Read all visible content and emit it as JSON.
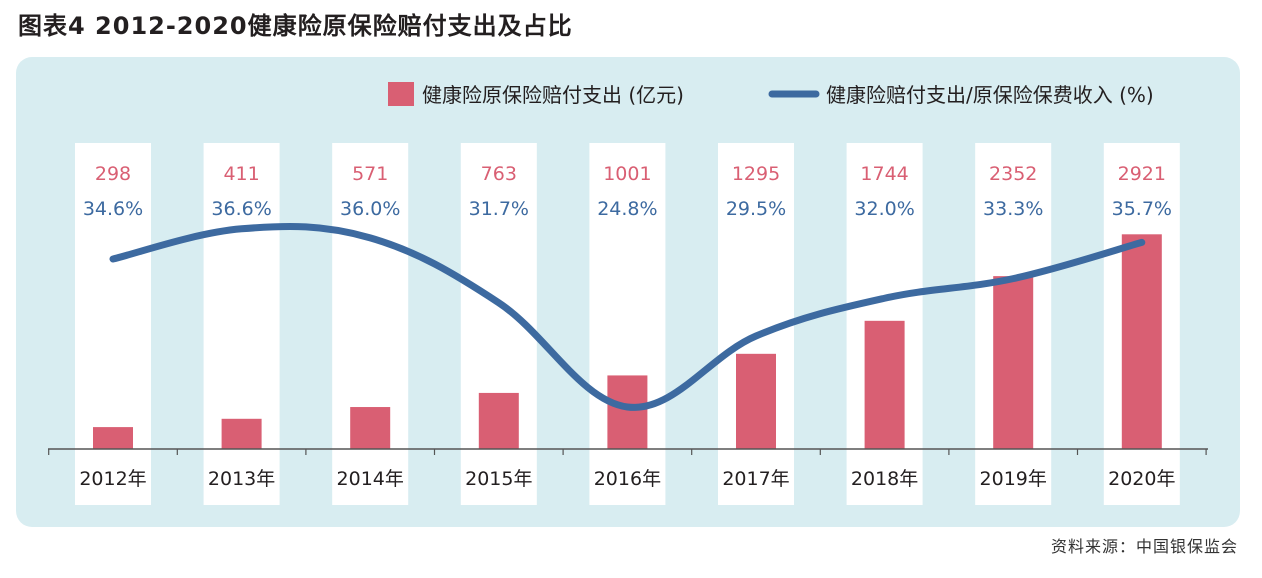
{
  "figure": {
    "title": "图表4  2012-2020健康险原保险赔付支出及占比",
    "source": "资料来源：中国银保监会"
  },
  "colors": {
    "panel_bg": "#d8edf1",
    "column_bg": "#ffffff",
    "bar": "#d95f73",
    "line": "#3d6aa0",
    "bar_label": "#d95f73",
    "line_label": "#3d6aa0",
    "axis": "#555555"
  },
  "chart_data": {
    "type": "bar",
    "categories": [
      "2012年",
      "2013年",
      "2014年",
      "2015年",
      "2016年",
      "2017年",
      "2018年",
      "2019年",
      "2020年"
    ],
    "series": [
      {
        "name": "健康险原保险赔付支出 (亿元)",
        "type": "bar",
        "values": [
          298,
          411,
          571,
          763,
          1001,
          1295,
          1744,
          2352,
          2921
        ],
        "labels": [
          "298",
          "411",
          "571",
          "763",
          "1001",
          "1295",
          "1744",
          "2352",
          "2921"
        ]
      },
      {
        "name": "健康险赔付支出/原保险保费收入 (%)",
        "type": "line",
        "values": [
          34.6,
          36.6,
          36.0,
          31.7,
          24.8,
          29.5,
          32.0,
          33.3,
          35.7
        ],
        "labels": [
          "34.6%",
          "36.6%",
          "36.0%",
          "31.7%",
          "24.8%",
          "29.5%",
          "32.0%",
          "33.3%",
          "35.7%"
        ]
      }
    ],
    "legend_position": "top-right",
    "grid": false
  }
}
